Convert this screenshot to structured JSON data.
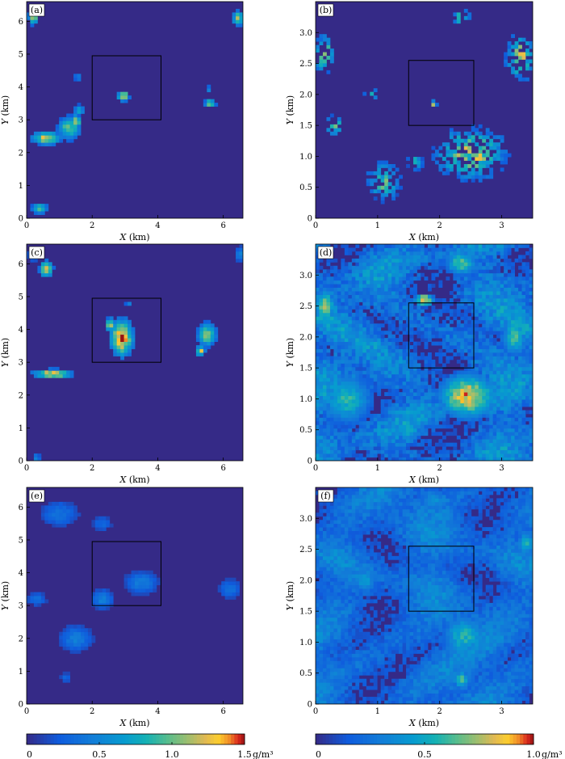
{
  "chart_data": [
    {
      "type": "heatmap",
      "panel_label": "(a)",
      "x_ticks": [
        "0",
        "2",
        "4",
        "6"
      ],
      "x_tick_values": [
        0,
        2,
        4,
        6
      ],
      "y_ticks": [
        "0",
        "1",
        "2",
        "3",
        "4",
        "5",
        "6"
      ],
      "y_tick_values": [
        0,
        1,
        2,
        3,
        4,
        5,
        6
      ],
      "xlabel_var": "X",
      "xlabel_unit": " (km)",
      "ylabel_var": "Y",
      "ylabel_unit": " (km)",
      "xlim": [
        0,
        6.6
      ],
      "ylim": [
        0,
        6.6
      ],
      "box": [
        2.0,
        3.0,
        4.1,
        4.95
      ],
      "scale_max": 1.5,
      "features": [
        {
          "x": 0.2,
          "y": 6.15,
          "rx": 0.15,
          "ry": 0.25,
          "v": 1.2
        },
        {
          "x": 6.45,
          "y": 6.1,
          "rx": 0.18,
          "ry": 0.22,
          "v": 1.1
        },
        {
          "x": 2.95,
          "y": 3.72,
          "rx": 0.18,
          "ry": 0.15,
          "v": 1.3
        },
        {
          "x": 5.6,
          "y": 3.5,
          "rx": 0.17,
          "ry": 0.12,
          "v": 1.2
        },
        {
          "x": 5.55,
          "y": 3.95,
          "rx": 0.1,
          "ry": 0.08,
          "v": 0.6
        },
        {
          "x": 0.6,
          "y": 2.45,
          "rx": 0.45,
          "ry": 0.2,
          "v": 1.2
        },
        {
          "x": 1.3,
          "y": 2.75,
          "rx": 0.35,
          "ry": 0.35,
          "v": 1.0
        },
        {
          "x": 1.6,
          "y": 3.3,
          "rx": 0.15,
          "ry": 0.15,
          "v": 0.8
        },
        {
          "x": 1.5,
          "y": 2.95,
          "rx": 0.15,
          "ry": 0.2,
          "v": 1.3
        },
        {
          "x": 1.55,
          "y": 4.3,
          "rx": 0.1,
          "ry": 0.12,
          "v": 0.55
        },
        {
          "x": 0.4,
          "y": 0.3,
          "rx": 0.25,
          "ry": 0.17,
          "v": 0.9
        }
      ]
    },
    {
      "type": "heatmap",
      "panel_label": "(b)",
      "x_ticks": [
        "0",
        "1",
        "2",
        "3"
      ],
      "x_tick_values": [
        0,
        1,
        2,
        3
      ],
      "y_ticks": [
        "0",
        "0.5",
        "1.0",
        "1.5",
        "2.0",
        "2.5",
        "3.0"
      ],
      "y_tick_values": [
        0,
        0.5,
        1.0,
        1.5,
        2.0,
        2.5,
        3.0
      ],
      "xlabel_var": "X",
      "xlabel_unit": " (km)",
      "ylabel_var": "Y",
      "ylabel_unit": " (km)",
      "xlim": [
        0,
        3.5
      ],
      "ylim": [
        0,
        3.5
      ],
      "box": [
        1.5,
        1.5,
        2.55,
        2.55
      ],
      "scale_max": 1.5,
      "features": [
        {
          "x": 0.15,
          "y": 2.65,
          "rx": 0.15,
          "ry": 0.3,
          "v": 1.2,
          "sp": 0.5
        },
        {
          "x": 2.35,
          "y": 3.25,
          "rx": 0.15,
          "ry": 0.12,
          "v": 1.2,
          "sp": 0.5
        },
        {
          "x": 3.3,
          "y": 2.6,
          "rx": 0.22,
          "ry": 0.35,
          "v": 1.2,
          "sp": 0.5
        },
        {
          "x": 0.3,
          "y": 1.5,
          "rx": 0.12,
          "ry": 0.15,
          "v": 1.2,
          "sp": 0.5
        },
        {
          "x": 0.9,
          "y": 2.0,
          "rx": 0.12,
          "ry": 0.08,
          "v": 1.0,
          "sp": 0.5
        },
        {
          "x": 1.9,
          "y": 1.85,
          "rx": 0.05,
          "ry": 0.05,
          "v": 1.3
        },
        {
          "x": 2.5,
          "y": 1.05,
          "rx": 0.55,
          "ry": 0.4,
          "v": 1.2,
          "sp": 0.55
        },
        {
          "x": 1.1,
          "y": 0.6,
          "rx": 0.25,
          "ry": 0.3,
          "v": 1.0,
          "sp": 0.55
        },
        {
          "x": 1.6,
          "y": 0.9,
          "rx": 0.12,
          "ry": 0.12,
          "v": 0.9,
          "sp": 0.5
        }
      ]
    },
    {
      "type": "heatmap",
      "panel_label": "(c)",
      "x_ticks": [
        "0",
        "2",
        "4",
        "6"
      ],
      "x_tick_values": [
        0,
        2,
        4,
        6
      ],
      "y_ticks": [
        "0",
        "1",
        "2",
        "3",
        "4",
        "5",
        "6"
      ],
      "y_tick_values": [
        0,
        1,
        2,
        3,
        4,
        5,
        6
      ],
      "xlabel_var": "X",
      "xlabel_unit": " (km)",
      "ylabel_var": "Y",
      "ylabel_unit": " (km)",
      "xlim": [
        0,
        6.6
      ],
      "ylim": [
        0,
        6.6
      ],
      "box": [
        2.0,
        3.0,
        4.1,
        4.95
      ],
      "scale_max": 1.5,
      "features": [
        {
          "x": 0.6,
          "y": 5.85,
          "rx": 0.2,
          "ry": 0.25,
          "v": 1.3
        },
        {
          "x": 0.2,
          "y": 6.3,
          "rx": 0.15,
          "ry": 0.2,
          "v": 0.6
        },
        {
          "x": 2.9,
          "y": 3.75,
          "rx": 0.35,
          "ry": 0.55,
          "v": 1.45
        },
        {
          "x": 2.55,
          "y": 4.15,
          "rx": 0.15,
          "ry": 0.2,
          "v": 1.2
        },
        {
          "x": 5.5,
          "y": 3.85,
          "rx": 0.28,
          "ry": 0.35,
          "v": 1.1
        },
        {
          "x": 5.3,
          "y": 3.35,
          "rx": 0.15,
          "ry": 0.15,
          "v": 1.2
        },
        {
          "x": 0.8,
          "y": 2.65,
          "rx": 0.6,
          "ry": 0.14,
          "v": 1.3
        },
        {
          "x": 6.5,
          "y": 6.3,
          "rx": 0.1,
          "ry": 0.25,
          "v": 0.55
        },
        {
          "x": 0.3,
          "y": 0.1,
          "rx": 0.12,
          "ry": 0.1,
          "v": 0.6
        },
        {
          "x": 3.1,
          "y": 4.8,
          "rx": 0.08,
          "ry": 0.08,
          "v": 0.6
        }
      ]
    },
    {
      "type": "heatmap",
      "panel_label": "(d)",
      "x_ticks": [
        "0",
        "1",
        "2",
        "3"
      ],
      "x_tick_values": [
        0,
        1,
        2,
        3
      ],
      "y_ticks": [
        "0",
        "0.5",
        "1.0",
        "1.5",
        "2.0",
        "2.5",
        "3.0"
      ],
      "y_tick_values": [
        0,
        0.5,
        1.0,
        1.5,
        2.0,
        2.5,
        3.0
      ],
      "xlabel_var": "X",
      "xlabel_unit": " (km)",
      "ylabel_var": "Y",
      "ylabel_unit": " (km)",
      "xlim": [
        0,
        3.5
      ],
      "ylim": [
        0,
        3.5
      ],
      "box": [
        1.5,
        1.5,
        2.55,
        2.55
      ],
      "scale_max": 1.5,
      "background": "noise",
      "features": [
        {
          "x": 2.45,
          "y": 1.05,
          "rx": 0.45,
          "ry": 0.35,
          "v": 1.3
        },
        {
          "x": 2.35,
          "y": 3.2,
          "rx": 0.25,
          "ry": 0.2,
          "v": 1.0
        },
        {
          "x": 0.15,
          "y": 2.5,
          "rx": 0.15,
          "ry": 0.25,
          "v": 1.2
        },
        {
          "x": 1.75,
          "y": 2.6,
          "rx": 0.15,
          "ry": 0.1,
          "v": 1.3
        },
        {
          "x": 3.2,
          "y": 2.0,
          "rx": 0.2,
          "ry": 0.3,
          "v": 0.9
        },
        {
          "x": 0.5,
          "y": 1.0,
          "rx": 0.4,
          "ry": 0.4,
          "v": 0.85
        },
        {
          "x": 1.5,
          "y": 0.5,
          "rx": 0.2,
          "ry": 0.2,
          "v": 0.8
        }
      ]
    },
    {
      "type": "heatmap",
      "panel_label": "(e)",
      "x_ticks": [
        "0",
        "2",
        "4",
        "6"
      ],
      "x_tick_values": [
        0,
        2,
        4,
        6
      ],
      "y_ticks": [
        "0",
        "1",
        "2",
        "3",
        "4",
        "5",
        "6"
      ],
      "y_tick_values": [
        0,
        1,
        2,
        3,
        4,
        5,
        6
      ],
      "xlabel_var": "X",
      "xlabel_unit": " (km)",
      "ylabel_var": "Y",
      "ylabel_unit": " (km)",
      "xlim": [
        0,
        6.6
      ],
      "ylim": [
        0,
        6.6
      ],
      "box": [
        2.0,
        3.0,
        4.1,
        4.95
      ],
      "scale_max": 1.0,
      "features": [
        {
          "x": 1.0,
          "y": 5.8,
          "rx": 0.6,
          "ry": 0.4,
          "v": 0.25
        },
        {
          "x": 2.3,
          "y": 5.5,
          "rx": 0.3,
          "ry": 0.25,
          "v": 0.2
        },
        {
          "x": 3.5,
          "y": 3.7,
          "rx": 0.5,
          "ry": 0.35,
          "v": 0.3
        },
        {
          "x": 2.3,
          "y": 3.2,
          "rx": 0.35,
          "ry": 0.3,
          "v": 0.3
        },
        {
          "x": 1.5,
          "y": 2.0,
          "rx": 0.5,
          "ry": 0.4,
          "v": 0.3
        },
        {
          "x": 6.2,
          "y": 3.5,
          "rx": 0.35,
          "ry": 0.3,
          "v": 0.25
        },
        {
          "x": 0.3,
          "y": 3.2,
          "rx": 0.3,
          "ry": 0.2,
          "v": 0.25
        },
        {
          "x": 1.2,
          "y": 0.8,
          "rx": 0.2,
          "ry": 0.15,
          "v": 0.2
        }
      ]
    },
    {
      "type": "heatmap",
      "panel_label": "(f)",
      "x_ticks": [
        "0",
        "1",
        "2",
        "3"
      ],
      "x_tick_values": [
        0,
        1,
        2,
        3
      ],
      "y_ticks": [
        "0",
        "0.5",
        "1.0",
        "1.5",
        "2.0",
        "2.5",
        "3.0"
      ],
      "y_tick_values": [
        0,
        0.5,
        1.0,
        1.5,
        2.0,
        2.5,
        3.0
      ],
      "xlabel_var": "X",
      "xlabel_unit": " (km)",
      "ylabel_var": "Y",
      "ylabel_unit": " (km)",
      "xlim": [
        0,
        3.5
      ],
      "ylim": [
        0,
        3.5
      ],
      "box": [
        1.5,
        1.5,
        2.55,
        2.55
      ],
      "scale_max": 1.0,
      "background": "noise_low",
      "features": [
        {
          "x": 2.4,
          "y": 1.1,
          "rx": 0.35,
          "ry": 0.35,
          "v": 0.55
        },
        {
          "x": 2.35,
          "y": 0.4,
          "rx": 0.15,
          "ry": 0.15,
          "v": 0.6
        },
        {
          "x": 3.4,
          "y": 2.6,
          "rx": 0.15,
          "ry": 0.2,
          "v": 0.55
        },
        {
          "x": 0.8,
          "y": 2.0,
          "rx": 0.2,
          "ry": 0.2,
          "v": 0.45
        },
        {
          "x": 1.9,
          "y": 3.3,
          "rx": 0.25,
          "ry": 0.2,
          "v": 0.4
        }
      ]
    }
  ],
  "colorbars": [
    {
      "ticks": [
        "0",
        "0.5",
        "1.0",
        "1.5"
      ],
      "tick_values": [
        0,
        0.5,
        1.0,
        1.5
      ],
      "max": 1.5,
      "unit": "g/m³"
    },
    {
      "ticks": [
        "0",
        "0.5",
        "1.0"
      ],
      "tick_values": [
        0,
        0.5,
        1.0
      ],
      "max": 1.0,
      "unit": "g/m³"
    }
  ],
  "colors": {
    "background_field": "#352a87",
    "axis": "#000000",
    "box": "#000000"
  }
}
